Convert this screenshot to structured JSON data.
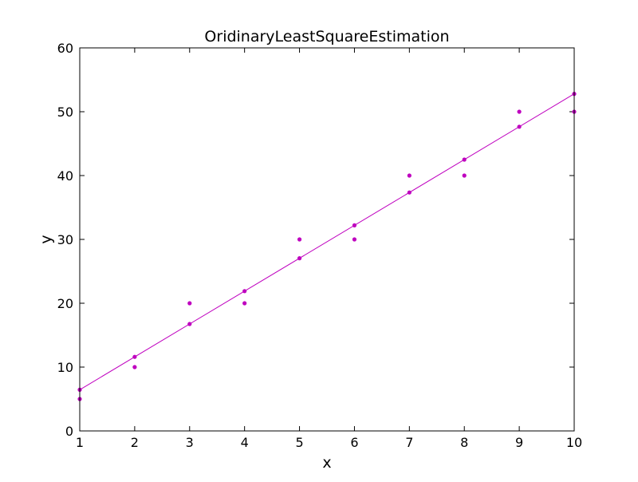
{
  "chart_data": {
    "type": "scatter",
    "title": "OridinaryLeastSquareEstimation",
    "xlabel": "x",
    "ylabel": "y",
    "xlim": [
      1,
      10
    ],
    "ylim": [
      0,
      60
    ],
    "xticks": [
      1,
      2,
      3,
      4,
      5,
      6,
      7,
      8,
      9,
      10
    ],
    "yticks": [
      0,
      10,
      20,
      30,
      40,
      50,
      60
    ],
    "grid": false,
    "color": "#bf00bf",
    "series": [
      {
        "kind": "scatter",
        "points": [
          [
            1,
            5
          ],
          [
            2,
            10
          ],
          [
            3,
            20
          ],
          [
            4,
            20
          ],
          [
            5,
            30
          ],
          [
            6,
            30
          ],
          [
            7,
            40
          ],
          [
            8,
            40
          ],
          [
            9,
            50
          ],
          [
            10,
            50
          ]
        ]
      },
      {
        "kind": "scatter",
        "points": [
          [
            1,
            6.45
          ],
          [
            2,
            11.6
          ],
          [
            3,
            16.75
          ],
          [
            4,
            21.9
          ],
          [
            5,
            27.05
          ],
          [
            6,
            32.2
          ],
          [
            7,
            37.35
          ],
          [
            8,
            42.5
          ],
          [
            9,
            47.65
          ],
          [
            10,
            52.8
          ]
        ]
      },
      {
        "kind": "line",
        "points": [
          [
            1,
            6.45
          ],
          [
            10,
            52.8
          ]
        ]
      }
    ]
  }
}
